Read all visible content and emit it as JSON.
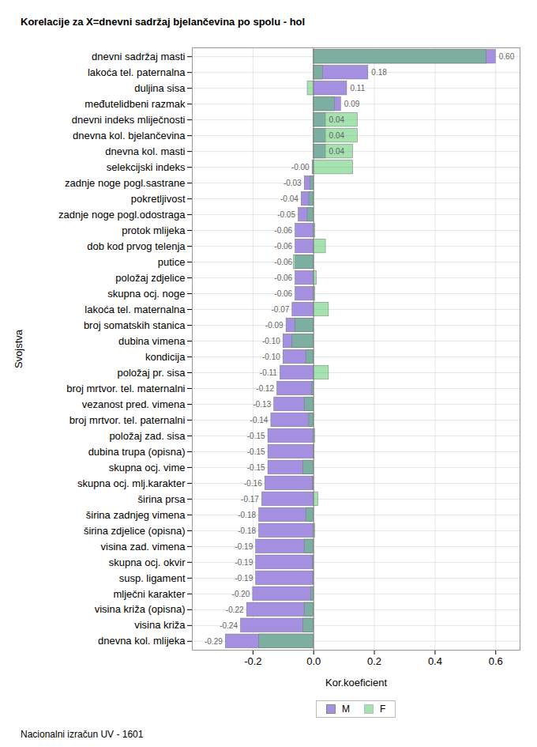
{
  "chart_data": {
    "type": "bar",
    "orientation": "horizontal",
    "title": "Korelacije za X=dnevni sadržaj bjelančevina po spolu - hol",
    "xlabel": "Kor.koeficient",
    "ylabel": "Svojstva",
    "caption": "Nacionalni izračun UV - 1601",
    "categories": [
      "dnevni sadržaj masti",
      "lakoća tel. paternalna",
      "duljina sisa",
      "međutelidbeni razmak",
      "dnevni indeks mliječnosti",
      "dnevna kol. bjelančevina",
      "dnevna kol. masti",
      "selekcijski indeks",
      "zadnje noge pogl.sastrane",
      "pokretljivost",
      "zadnje noge pogl.odostraga",
      "protok mlijeka",
      "dob kod prvog telenja",
      "putice",
      "položaj zdjelice",
      "skupna ocj. noge",
      "lakoća tel. maternalna",
      "broj somatskih stanica",
      "dubina vimena",
      "kondicija",
      "položaj pr. sisa",
      "broj mrtvor. tel. maternalni",
      "vezanost pred. vimena",
      "broj mrtvor. tel. paternalni",
      "položaj zad. sisa",
      "dubina trupa (opisna)",
      "skupna ocj. vime",
      "skupna ocj. mlj.karakter",
      "širina prsa",
      "širina zadnjeg vimena",
      "širina zdjelice (opisna)",
      "visina zad. vimena",
      "skupna ocj. okvir",
      "susp. ligament",
      "mlječni karakter",
      "visina križa (opisna)",
      "visina križa",
      "dnevna kol. mlijeka"
    ],
    "series": [
      {
        "name": "M",
        "color": "#a48fe0",
        "data_labels": true,
        "values": [
          0.6,
          0.18,
          0.11,
          0.09,
          0.04,
          0.04,
          0.04,
          -0.004,
          -0.03,
          -0.04,
          -0.05,
          -0.06,
          -0.06,
          -0.06,
          -0.06,
          -0.06,
          -0.07,
          -0.09,
          -0.1,
          -0.1,
          -0.11,
          -0.12,
          -0.13,
          -0.14,
          -0.15,
          -0.15,
          -0.15,
          -0.16,
          -0.17,
          -0.18,
          -0.18,
          -0.19,
          -0.19,
          -0.19,
          -0.2,
          -0.22,
          -0.24,
          -0.29
        ],
        "value_labels": [
          "0.60",
          "0.18",
          "0.11",
          "0.09",
          "0.04",
          "0.04",
          "0.04",
          "-0.00",
          "-0.03",
          "-0.04",
          "-0.05",
          "-0.06",
          "-0.06",
          "-0.06",
          "-0.06",
          "-0.06",
          "-0.07",
          "-0.09",
          "-0.10",
          "-0.10",
          "-0.11",
          "-0.12",
          "-0.13",
          "-0.14",
          "-0.15",
          "-0.15",
          "-0.15",
          "-0.16",
          "-0.17",
          "-0.18",
          "-0.18",
          "-0.19",
          "-0.19",
          "-0.19",
          "-0.20",
          "-0.22",
          "-0.24",
          "-0.29"
        ]
      },
      {
        "name": "F",
        "color": "#5cc870",
        "values": [
          0.57,
          0.03,
          -0.02,
          0.07,
          0.145,
          0.145,
          0.13,
          0.13,
          -0.01,
          -0.015,
          -0.02,
          0.005,
          0.04,
          -0.065,
          0.01,
          0.005,
          0.05,
          -0.06,
          -0.07,
          -0.025,
          0.05,
          -0.005,
          -0.03,
          -0.015,
          0.005,
          0.003,
          -0.035,
          -0.003,
          0.015,
          -0.025,
          0.005,
          -0.03,
          -0.003,
          -0.002,
          -0.008,
          -0.03,
          -0.035,
          -0.18
        ]
      }
    ],
    "xlim": [
      -0.4,
      0.68
    ],
    "xticks": [
      -0.2,
      {
        "value": 0,
        "label": "0.0"
      },
      0.2,
      0.4,
      0.6
    ],
    "grid": true,
    "legend": "bottom"
  }
}
